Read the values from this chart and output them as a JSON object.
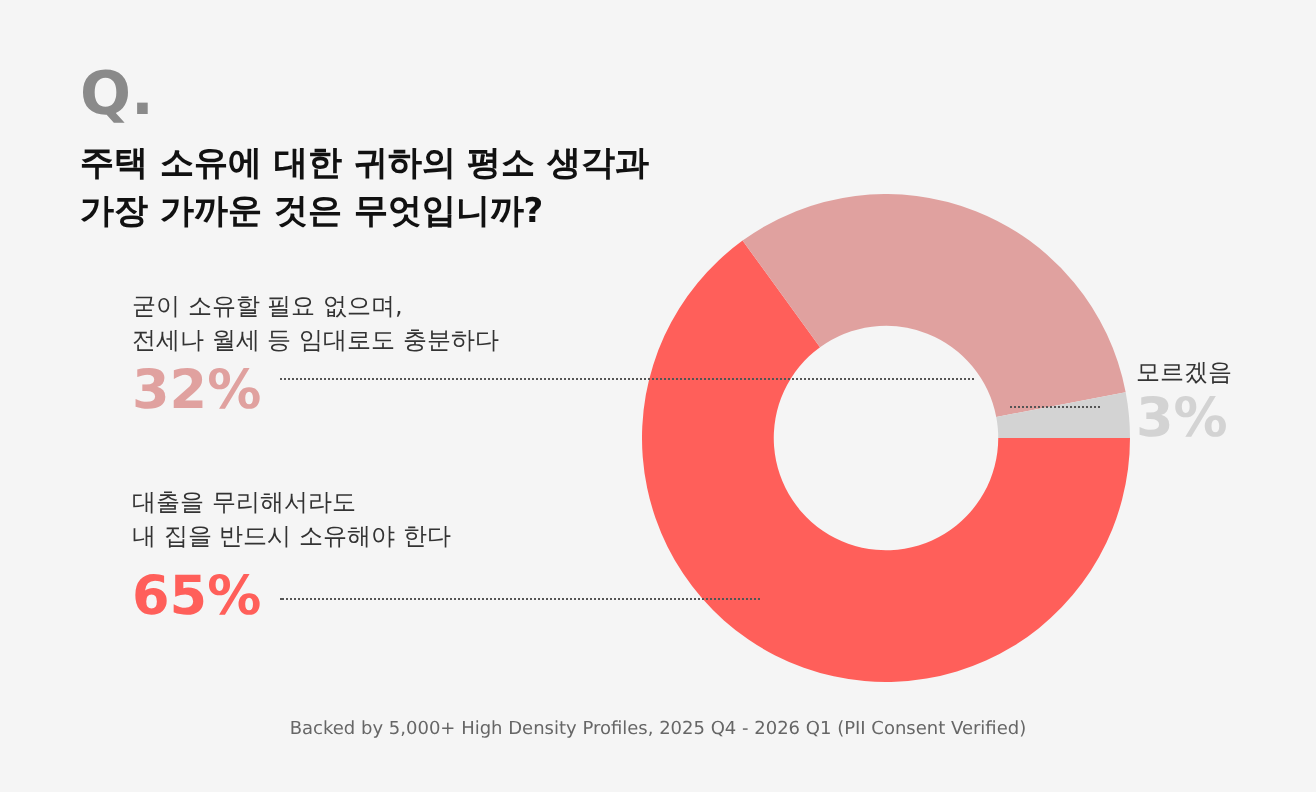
{
  "chart_data": {
    "type": "donut",
    "title": "주택 소유에 대한 귀하의 평소 생각과\n가장 가까운 것은 무엇입니까?",
    "categories": [
      "대출을 무리해서라도\n내 집을 반드시 소유해야 한다",
      "굳이 소유할 필요 없으며,\n전세나 월세 등 임대로도 충분하다",
      "모르겠음"
    ],
    "values": [
      65,
      32,
      3
    ],
    "colors": [
      "#ff5f5a",
      "#e0a19f",
      "#d3d3d3"
    ],
    "value_labels": [
      "65%",
      "32%",
      "3%"
    ],
    "legend": false,
    "annotations": [
      "Q.",
      "Backed by 5,000+ High Density Profiles, 2025 Q4 - 2026 Q1 (PII Consent Verified)"
    ]
  }
}
